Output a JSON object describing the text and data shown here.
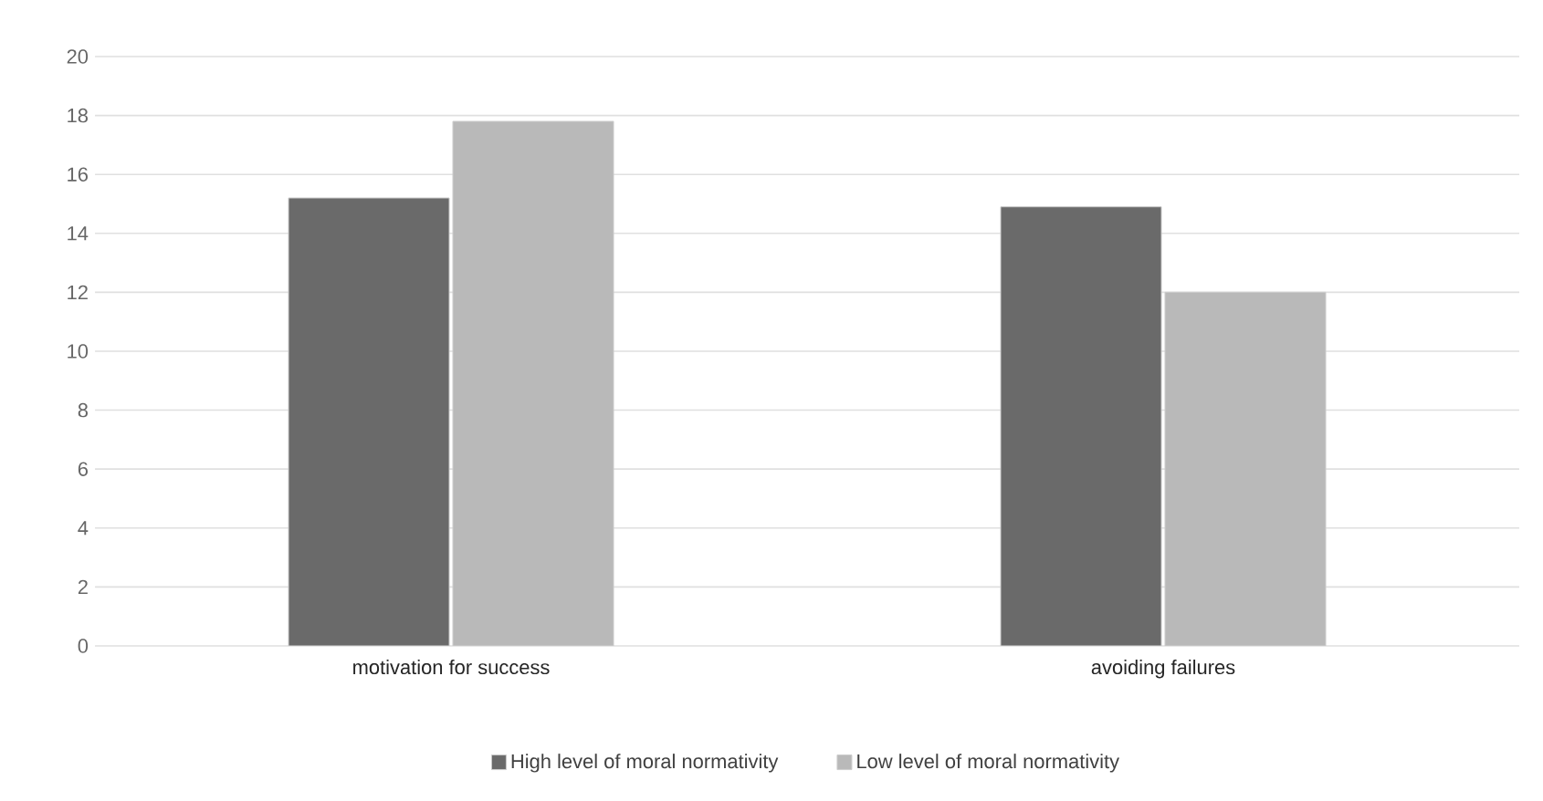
{
  "chart_data": {
    "type": "bar",
    "categories": [
      "motivation for success",
      "avoiding failures"
    ],
    "series": [
      {
        "name": "High level of moral normativity",
        "color": "#6a6a6a",
        "values": [
          15.2,
          14.9
        ]
      },
      {
        "name": "Low level of moral normativity",
        "color": "#b9b9b9",
        "values": [
          17.8,
          12.0
        ]
      }
    ],
    "ylim": [
      0,
      20
    ],
    "yticks": [
      0,
      2,
      4,
      6,
      8,
      10,
      12,
      14,
      16,
      18,
      20
    ],
    "grid": "y",
    "legend": "bottom"
  }
}
